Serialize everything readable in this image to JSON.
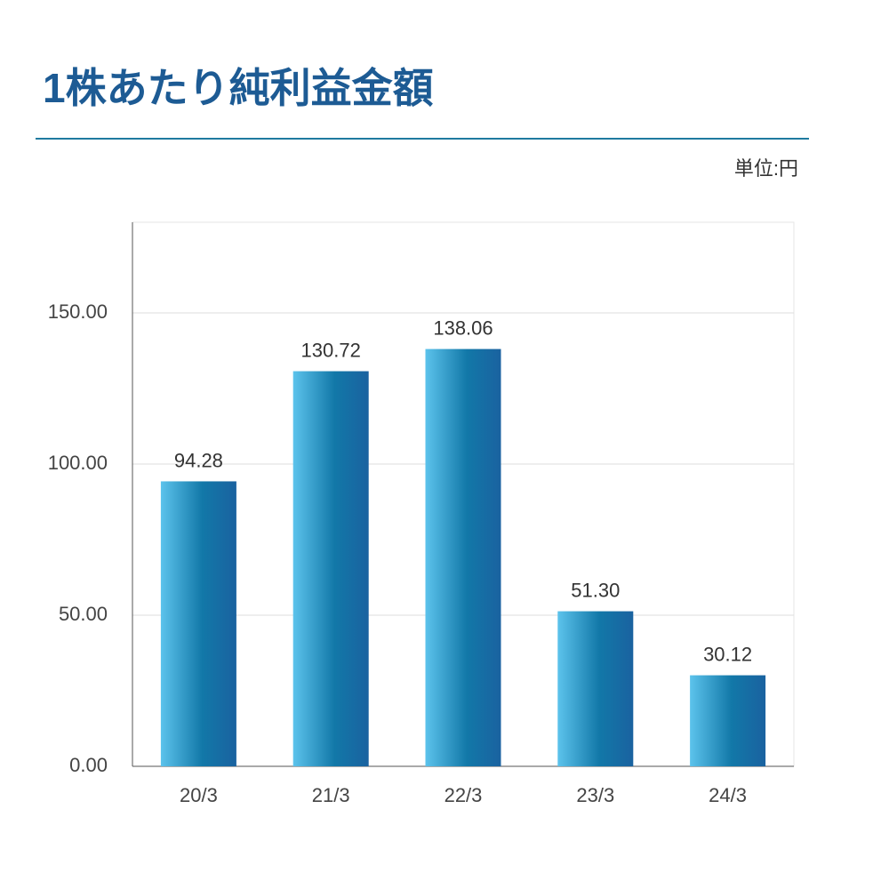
{
  "chart_data": {
    "type": "bar",
    "title": "1株あたり純利益金額",
    "unit_label": "単位:円",
    "categories": [
      "20/3",
      "21/3",
      "22/3",
      "23/3",
      "24/3"
    ],
    "values": [
      94.28,
      130.72,
      138.06,
      51.3,
      30.12
    ],
    "value_labels": [
      "94.28",
      "130.72",
      "138.06",
      "51.30",
      "30.12"
    ],
    "color": "#1a62a0",
    "ylim": [
      0,
      180
    ],
    "yticks": [
      {
        "value": 0,
        "label": "0.00"
      },
      {
        "value": 50,
        "label": "50.00"
      },
      {
        "value": 100,
        "label": "100.00"
      },
      {
        "value": 150,
        "label": "150.00"
      }
    ],
    "grid": true
  }
}
